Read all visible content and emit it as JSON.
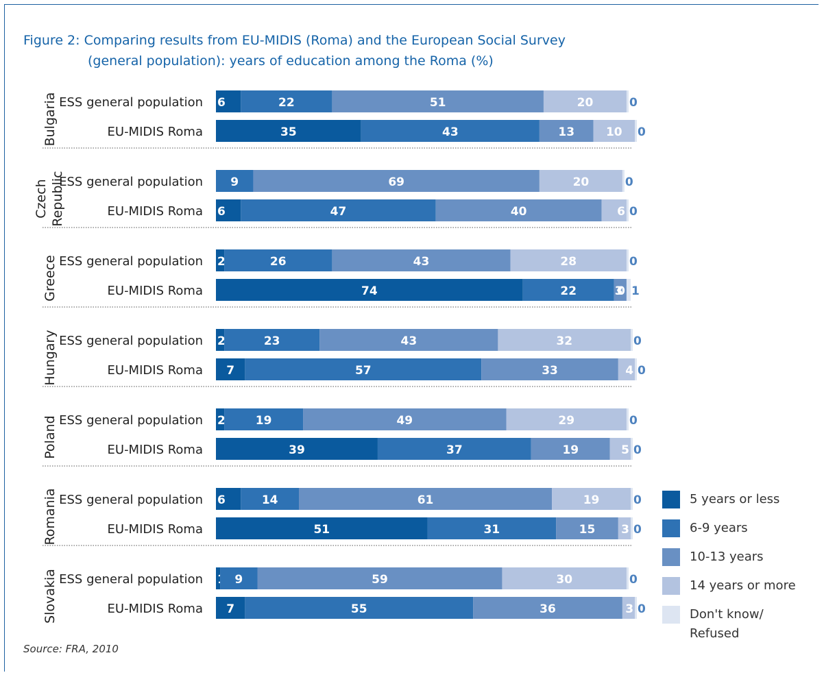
{
  "title_line1": "Figure 2: Comparing results from EU-MIDIS (Roma) and the European Social Survey",
  "title_line2": "(general population): years of education among the Roma (%)",
  "source": "Source: FRA, 2010",
  "colors": {
    "c5less": "#0a5a9e",
    "c6to9": "#2e72b4",
    "c10to13": "#6990c3",
    "c14more": "#b3c3e0",
    "cdontknow": "#dde5f2",
    "title": "#1563a8",
    "last_value_label": "#4d82bf"
  },
  "legend": [
    {
      "label": "5 years or less",
      "color": "#0a5a9e"
    },
    {
      "label": "6-9 years",
      "color": "#2e72b4"
    },
    {
      "label": "10-13 years",
      "color": "#6990c3"
    },
    {
      "label": "14 years or more",
      "color": "#b3c3e0"
    },
    {
      "label": "Don't know/\nRefused",
      "color": "#dde5f2"
    }
  ],
  "chart_data": {
    "type": "bar",
    "orientation": "horizontal",
    "stacked": true,
    "unit": "%",
    "series": [
      {
        "name": "5 years or less"
      },
      {
        "name": "6-9 years"
      },
      {
        "name": "10-13 years"
      },
      {
        "name": "14 years or more"
      },
      {
        "name": "Don't know/ Refused"
      }
    ],
    "groups": [
      {
        "country": "Bulgaria",
        "rows": [
          {
            "label": "ESS general population",
            "values": [
              6,
              22,
              51,
              20,
              0
            ]
          },
          {
            "label": "EU-MIDIS Roma",
            "values": [
              35,
              43,
              13,
              10,
              0
            ]
          }
        ]
      },
      {
        "country": "Czech\nRepublic",
        "rows": [
          {
            "label": "ESS general population",
            "values": [
              0,
              9,
              69,
              20,
              0
            ]
          },
          {
            "label": "EU-MIDIS Roma",
            "values": [
              6,
              47,
              40,
              6,
              0
            ]
          }
        ]
      },
      {
        "country": "Greece",
        "rows": [
          {
            "label": "ESS general population",
            "values": [
              2,
              26,
              43,
              28,
              0
            ]
          },
          {
            "label": "EU-MIDIS Roma",
            "values": [
              74,
              22,
              3,
              0,
              1
            ]
          }
        ]
      },
      {
        "country": "Hungary",
        "rows": [
          {
            "label": "ESS general population",
            "values": [
              2,
              23,
              43,
              32,
              0
            ]
          },
          {
            "label": "EU-MIDIS Roma",
            "values": [
              7,
              57,
              33,
              4,
              0
            ]
          }
        ]
      },
      {
        "country": "Poland",
        "rows": [
          {
            "label": "ESS general population",
            "values": [
              2,
              19,
              49,
              29,
              0
            ]
          },
          {
            "label": "EU-MIDIS Roma",
            "values": [
              39,
              37,
              19,
              5,
              0
            ]
          }
        ]
      },
      {
        "country": "Romania",
        "rows": [
          {
            "label": "ESS general population",
            "values": [
              6,
              14,
              61,
              19,
              0
            ]
          },
          {
            "label": "EU-MIDIS Roma",
            "values": [
              51,
              31,
              15,
              3,
              0
            ]
          }
        ]
      },
      {
        "country": "Slovakia",
        "rows": [
          {
            "label": "ESS general population",
            "values": [
              1,
              9,
              59,
              30,
              0
            ]
          },
          {
            "label": "EU-MIDIS Roma",
            "values": [
              7,
              55,
              36,
              3,
              0
            ]
          }
        ]
      }
    ]
  }
}
